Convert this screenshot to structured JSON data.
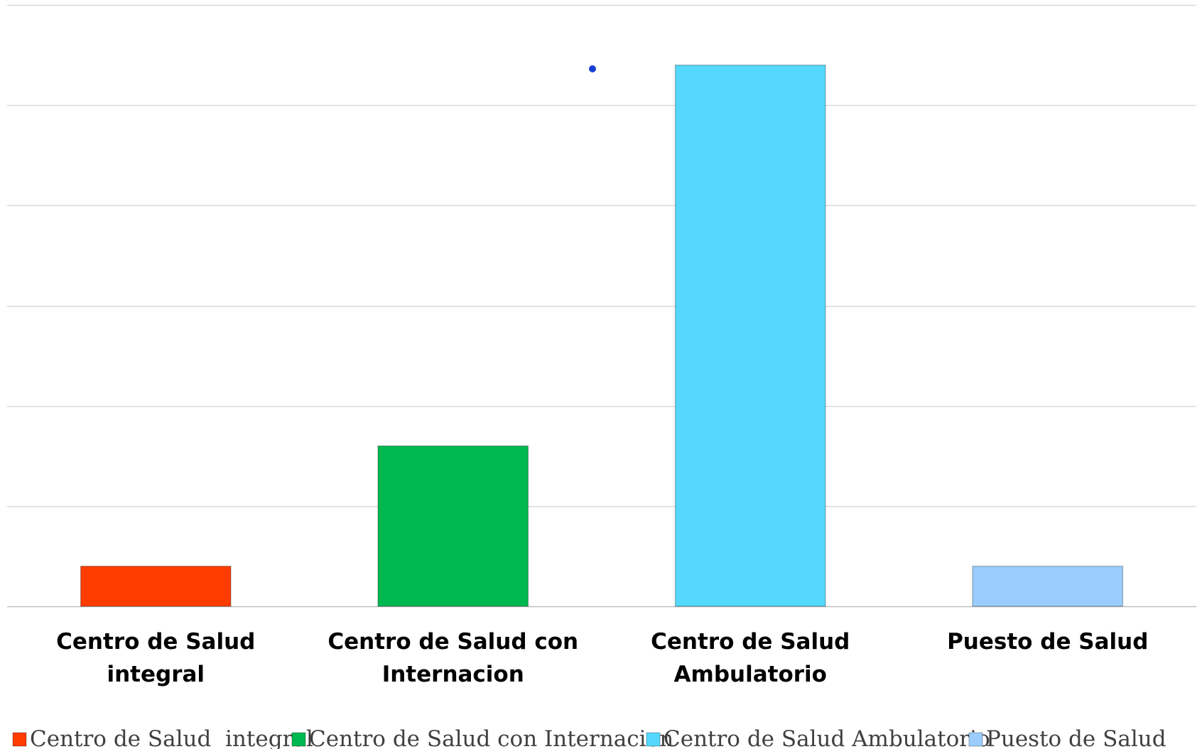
{
  "chart_data": {
    "type": "bar",
    "categories": [
      [
        "Centro de Salud",
        "integral"
      ],
      [
        "Centro de Salud con",
        "Internacion"
      ],
      [
        "Centro de Salud",
        "Ambulatorio"
      ],
      [
        "Puesto de Salud"
      ]
    ],
    "values": [
      2,
      8,
      27,
      2
    ],
    "ylim": [
      0,
      30
    ],
    "gridlines": true,
    "colors": [
      "#ff3c00",
      "#00b850",
      "#55d8fe",
      "#9acdfd"
    ],
    "legend": {
      "placement": "bottom",
      "entries": [
        "Centro de Salud  integral",
        "Centro de Salud con Internacion",
        "Centro de Salud Ambulatorio",
        "Puesto de Salud"
      ]
    }
  }
}
